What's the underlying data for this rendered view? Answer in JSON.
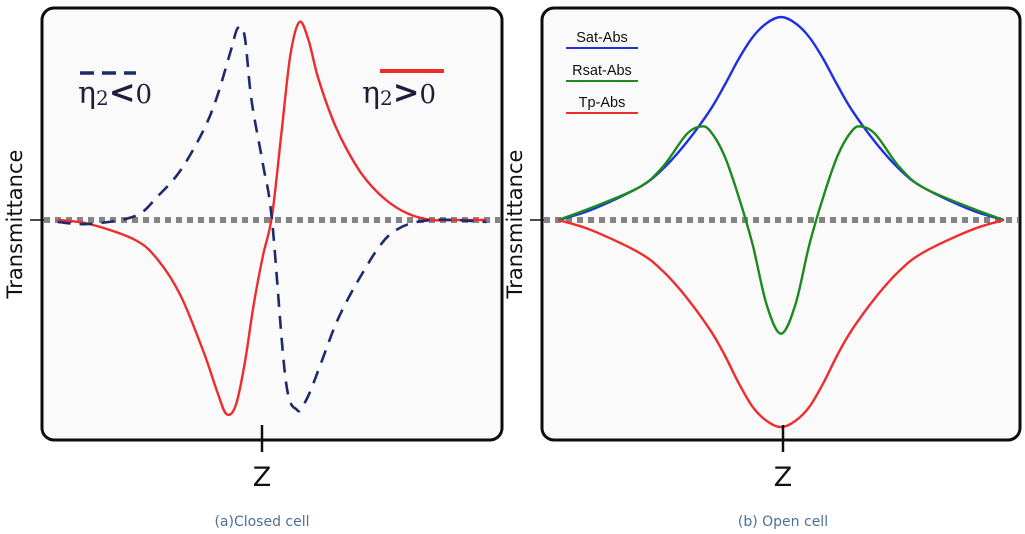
{
  "chart_data": [
    {
      "type": "line",
      "caption": "(a)Closed cell",
      "xlabel": "Z",
      "ylabel": "Transmittance",
      "xlim": [
        -5,
        5
      ],
      "ylim": [
        -1.05,
        1.05
      ],
      "baseline": 0,
      "annotations": [
        {
          "text": "η₂<0",
          "symbol": "η",
          "subscript": "2",
          "relation": "<",
          "rhs": "0",
          "color": "#1d2b6e",
          "style": "dashed"
        },
        {
          "text": "η₂>0",
          "symbol": "η",
          "subscript": "2",
          "relation": ">",
          "rhs": "0",
          "color": "#ee2c2c",
          "style": "solid"
        }
      ],
      "series": [
        {
          "color": "#ee2c2c",
          "style": "solid",
          "x": [
            -4.7,
            -4.0,
            -3.0,
            -2.5,
            -2.0,
            -1.5,
            -1.2,
            -1.0,
            -0.8,
            -0.6,
            -0.4,
            -0.2,
            0.0,
            0.2,
            0.4,
            0.6,
            0.8,
            1.0,
            1.3,
            1.6,
            2.0,
            2.5,
            3.0,
            3.5,
            4.0,
            4.7
          ],
          "y": [
            0.0,
            -0.02,
            -0.1,
            -0.2,
            -0.38,
            -0.66,
            -0.86,
            -0.97,
            -0.93,
            -0.72,
            -0.42,
            -0.18,
            0.02,
            0.42,
            0.82,
            0.99,
            0.9,
            0.72,
            0.52,
            0.37,
            0.22,
            0.1,
            0.03,
            0.0,
            0.0,
            0.0
          ]
        },
        {
          "color": "#1d2b6e",
          "style": "dashed",
          "x": [
            -4.7,
            -4.0,
            -3.0,
            -2.5,
            -2.0,
            -1.5,
            -1.2,
            -0.9,
            -0.75,
            -0.6,
            -0.45,
            -0.2,
            0.0,
            0.3,
            0.55,
            0.7,
            0.85,
            1.1,
            1.4,
            1.7,
            2.0,
            2.3,
            2.6,
            3.0,
            3.5,
            4.0,
            4.7
          ],
          "y": [
            -0.01,
            -0.02,
            0.02,
            0.12,
            0.25,
            0.45,
            0.62,
            0.85,
            0.96,
            0.92,
            0.6,
            0.28,
            0.0,
            -0.8,
            -0.95,
            -0.92,
            -0.85,
            -0.7,
            -0.52,
            -0.38,
            -0.26,
            -0.15,
            -0.07,
            -0.02,
            0.0,
            0.0,
            -0.01
          ]
        },
        {
          "color": "#848484",
          "style": "dotted",
          "x": [
            -5,
            5
          ],
          "y": [
            0,
            0
          ]
        }
      ]
    },
    {
      "type": "line",
      "caption": "(b) Open cell",
      "xlabel": "Z",
      "ylabel": "Transmittance",
      "xlim": [
        -5,
        5
      ],
      "ylim": [
        -1.05,
        1.05
      ],
      "baseline": 0,
      "legend_position": "top-left",
      "series": [
        {
          "name": "Sat-Abs",
          "color": "#1f2ee6",
          "style": "solid",
          "x": [
            -4.7,
            -4.0,
            -3.0,
            -2.5,
            -2.0,
            -1.5,
            -1.2,
            -0.9,
            -0.6,
            -0.3,
            0.0,
            0.3,
            0.6,
            0.9,
            1.2,
            1.5,
            2.0,
            2.5,
            3.0,
            4.0,
            4.7
          ],
          "y": [
            0.0,
            0.05,
            0.16,
            0.25,
            0.38,
            0.54,
            0.66,
            0.79,
            0.9,
            0.97,
            1.0,
            0.97,
            0.9,
            0.79,
            0.66,
            0.54,
            0.38,
            0.25,
            0.16,
            0.05,
            0.0
          ]
        },
        {
          "name": "Rsat-Abs",
          "color": "#1d8a1d",
          "style": "solid",
          "x": [
            -4.7,
            -4.0,
            -3.0,
            -2.5,
            -2.0,
            -1.7,
            -1.5,
            -1.2,
            -0.9,
            -0.6,
            -0.3,
            0.0,
            0.3,
            0.6,
            0.9,
            1.2,
            1.5,
            1.7,
            2.0,
            2.5,
            3.0,
            4.0,
            4.7
          ],
          "y": [
            0.0,
            0.06,
            0.16,
            0.26,
            0.42,
            0.46,
            0.44,
            0.32,
            0.12,
            -0.12,
            -0.42,
            -0.56,
            -0.42,
            -0.12,
            0.12,
            0.32,
            0.44,
            0.46,
            0.42,
            0.26,
            0.16,
            0.06,
            0.0
          ]
        },
        {
          "name": "Tp-Abs",
          "color": "#ee2c2c",
          "style": "solid",
          "x": [
            -4.7,
            -4.0,
            -3.0,
            -2.5,
            -2.0,
            -1.5,
            -1.2,
            -0.9,
            -0.6,
            -0.3,
            0.0,
            0.3,
            0.6,
            0.9,
            1.2,
            1.5,
            2.0,
            2.5,
            3.0,
            4.0,
            4.7
          ],
          "y": [
            0.0,
            -0.05,
            -0.16,
            -0.25,
            -0.38,
            -0.54,
            -0.66,
            -0.8,
            -0.92,
            -0.99,
            -1.02,
            -0.99,
            -0.92,
            -0.8,
            -0.66,
            -0.54,
            -0.38,
            -0.25,
            -0.16,
            -0.05,
            0.0
          ]
        },
        {
          "color": "#848484",
          "style": "dotted",
          "x": [
            -5,
            5
          ],
          "y": [
            0,
            0
          ]
        }
      ]
    }
  ]
}
